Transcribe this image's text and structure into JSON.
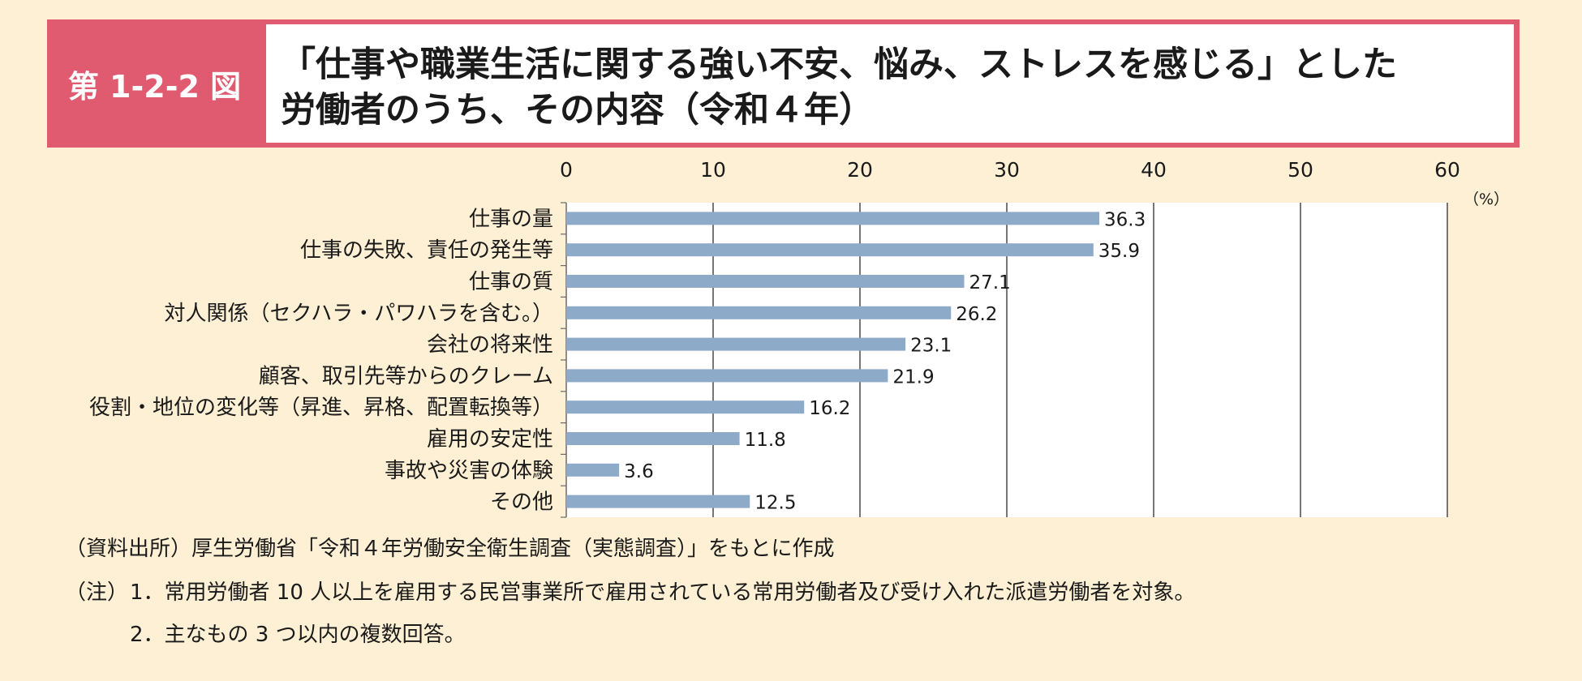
{
  "header": {
    "figure_number": "第 1-2-2 図",
    "title_line1": "「仕事や職業生活に関する強い不安、悩み、ストレスを感じる」とした",
    "title_line2": "労働者のうち、その内容（令和４年）"
  },
  "chart_data": {
    "type": "bar",
    "orientation": "horizontal",
    "categories": [
      "仕事の量",
      "仕事の失敗、責任の発生等",
      "仕事の質",
      "対人関係（セクハラ・パワハラを含む。）",
      "会社の将来性",
      "顧客、取引先等からのクレーム",
      "役割・地位の変化等（昇進、昇格、配置転換等）",
      "雇用の安定性",
      "事故や災害の体験",
      "その他"
    ],
    "values": [
      36.3,
      35.9,
      27.1,
      26.2,
      23.1,
      21.9,
      16.2,
      11.8,
      3.6,
      12.5
    ],
    "data_labels": [
      "36.3",
      "35.9",
      "27.1",
      "26.2",
      "23.1",
      "21.9",
      "16.2",
      "11.8",
      "3.6",
      "12.5"
    ],
    "xlim": [
      0,
      60
    ],
    "x_ticks": [
      "0",
      "10",
      "20",
      "30",
      "40",
      "50",
      "60"
    ],
    "x_tick_values": [
      0,
      10,
      20,
      30,
      40,
      50,
      60
    ],
    "unit_label": "（%）",
    "axis_position": "top",
    "grid": true,
    "bar_color": "#8eaac9"
  },
  "footer": {
    "source": "（資料出所）厚生労働省「令和４年労働安全衛生調査（実態調査）」をもとに作成",
    "note_label": "（注）",
    "note1": "1．常用労働者 10 人以上を雇用する民営事業所で雇用されている常用労働者及び受け入れた派遣労働者を対象。",
    "note2": "2．主なもの 3 つ以内の複数回答。"
  }
}
